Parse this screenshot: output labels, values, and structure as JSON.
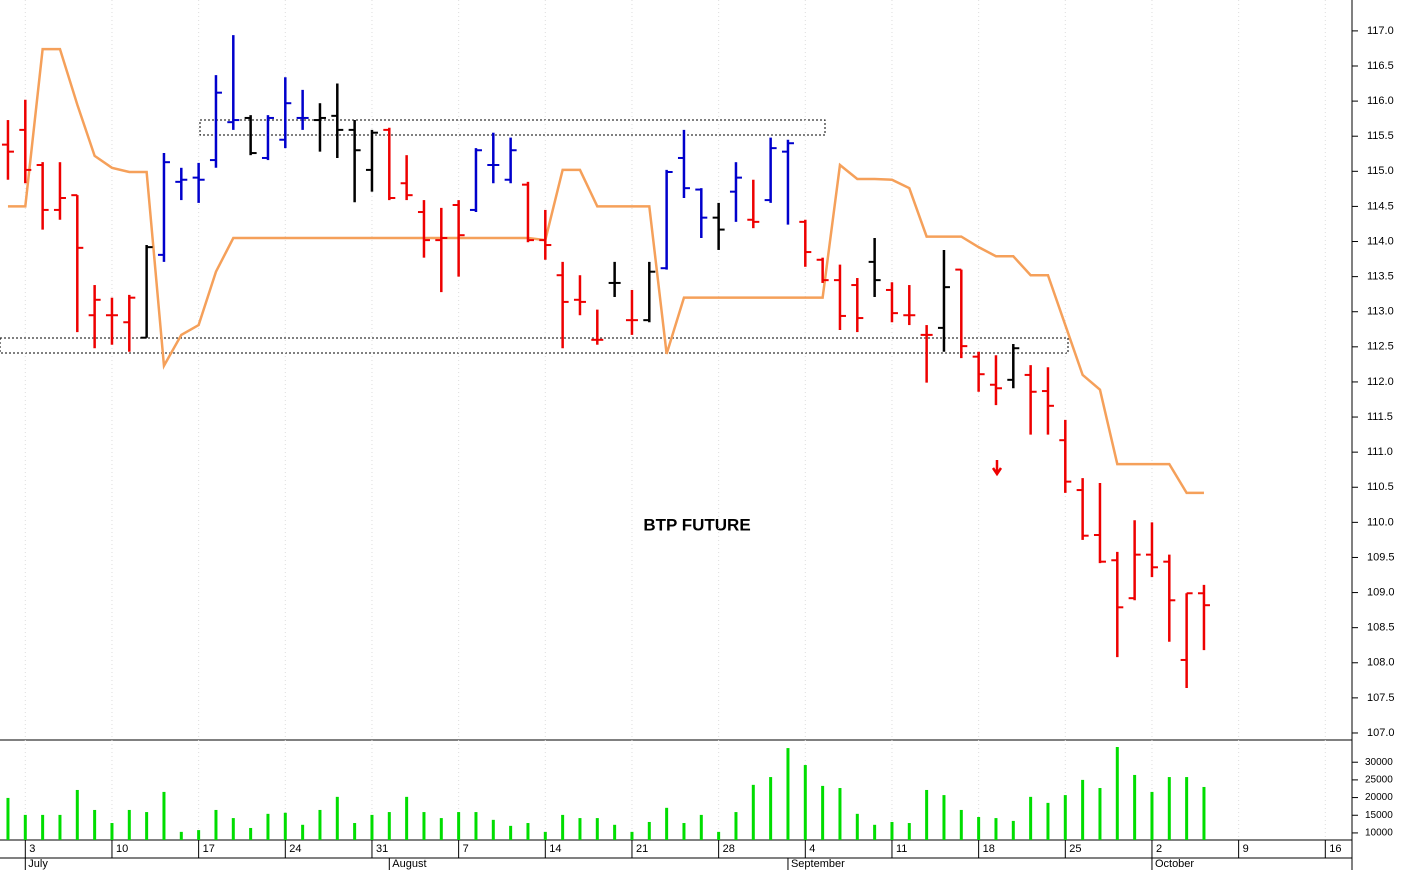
{
  "chart_data": {
    "type": "ohlc",
    "title": "BTP FUTURE",
    "categories": [
      null,
      "3",
      null,
      null,
      null,
      null,
      "10",
      null,
      null,
      null,
      null,
      "17",
      null,
      null,
      null,
      null,
      "24",
      null,
      null,
      null,
      null,
      "31",
      null,
      null,
      null,
      null,
      "7",
      null,
      null,
      null,
      null,
      "14",
      null,
      null,
      null,
      null,
      "21",
      null,
      null,
      null,
      null,
      "28",
      null,
      null,
      null,
      null,
      "4",
      null,
      null,
      null,
      null,
      "11",
      null,
      null,
      null,
      null,
      "18",
      null,
      null,
      null,
      null,
      "25",
      null,
      null,
      null,
      null,
      "2",
      null,
      null,
      null,
      null,
      "9",
      null,
      null,
      null,
      null,
      "16",
      null
    ],
    "months": [
      null,
      "July",
      null,
      null,
      null,
      null,
      null,
      null,
      null,
      null,
      null,
      null,
      null,
      null,
      null,
      null,
      null,
      null,
      null,
      null,
      null,
      null,
      "August",
      null,
      null,
      null,
      null,
      null,
      null,
      null,
      null,
      null,
      null,
      null,
      null,
      null,
      null,
      null,
      null,
      null,
      null,
      null,
      null,
      null,
      null,
      "September",
      null,
      null,
      null,
      null,
      null,
      null,
      null,
      null,
      null,
      null,
      null,
      null,
      null,
      null,
      null,
      null,
      null,
      null,
      null,
      null,
      "October",
      null,
      null,
      null,
      null,
      null,
      null,
      null,
      null,
      null,
      null,
      null
    ],
    "open": [
      115.38,
      115.59,
      115.09,
      114.45,
      114.66,
      112.95,
      112.95,
      112.85,
      112.63,
      113.81,
      114.85,
      114.91,
      115.16,
      115.7,
      115.76,
      115.19,
      115.45,
      115.76,
      115.73,
      115.79,
      115.59,
      115.02,
      115.59,
      114.83,
      114.42,
      114.02,
      114.52,
      114.45,
      115.09,
      114.88,
      114.81,
      114.02,
      113.52,
      113.17,
      112.6,
      113.41,
      112.88,
      112.88,
      113.62,
      115.19,
      114.74,
      114.34,
      114.71,
      114.31,
      114.59,
      115.28,
      114.28,
      113.74,
      113.45,
      113.38,
      113.71,
      113.31,
      112.95,
      112.67,
      112.77,
      113.6,
      112.36,
      111.96,
      112.03,
      112.1,
      111.87,
      111.17,
      110.46,
      109.82,
      109.46,
      108.92,
      109.54,
      109.44,
      108.04,
      108.99,
      null,
      null,
      null,
      null,
      null,
      null,
      null,
      null
    ],
    "high": [
      115.73,
      116.02,
      115.13,
      115.13,
      114.66,
      113.38,
      113.2,
      113.24,
      113.95,
      115.26,
      115.05,
      115.12,
      116.37,
      116.94,
      115.8,
      115.8,
      116.34,
      116.16,
      115.97,
      116.25,
      115.73,
      115.59,
      115.62,
      115.23,
      114.59,
      114.48,
      114.59,
      115.33,
      115.55,
      115.48,
      114.85,
      114.45,
      113.71,
      113.52,
      113.03,
      113.71,
      113.31,
      113.71,
      115.02,
      115.59,
      114.76,
      114.55,
      115.13,
      114.88,
      115.48,
      115.45,
      114.31,
      113.77,
      113.67,
      113.48,
      114.05,
      113.42,
      113.38,
      112.81,
      113.88,
      113.6,
      112.43,
      112.38,
      112.54,
      112.24,
      112.21,
      111.46,
      110.63,
      110.56,
      109.58,
      110.03,
      110.0,
      109.54,
      108.99,
      109.11,
      null,
      null,
      null,
      null,
      null,
      null,
      null,
      null
    ],
    "low": [
      114.88,
      114.83,
      114.17,
      114.31,
      112.71,
      112.48,
      112.53,
      112.43,
      112.63,
      113.71,
      114.59,
      114.55,
      115.05,
      115.59,
      115.23,
      115.16,
      115.33,
      115.59,
      115.28,
      115.19,
      114.56,
      114.71,
      114.59,
      114.59,
      113.77,
      113.28,
      113.5,
      114.42,
      114.83,
      114.83,
      113.99,
      113.74,
      112.48,
      112.95,
      112.53,
      113.21,
      112.67,
      112.85,
      113.6,
      114.62,
      114.05,
      113.88,
      114.28,
      114.19,
      114.55,
      114.24,
      113.64,
      113.41,
      112.74,
      112.71,
      113.21,
      112.85,
      112.81,
      111.99,
      112.43,
      112.34,
      111.86,
      111.67,
      111.91,
      111.25,
      111.25,
      110.42,
      109.75,
      109.42,
      108.08,
      108.89,
      109.22,
      108.3,
      107.64,
      108.18,
      null,
      null,
      null,
      null,
      null,
      null,
      null,
      null
    ],
    "close": [
      115.28,
      115.02,
      114.45,
      114.62,
      113.91,
      113.17,
      112.95,
      113.2,
      113.92,
      115.13,
      114.88,
      114.88,
      116.12,
      115.73,
      115.26,
      115.76,
      115.97,
      115.76,
      115.76,
      115.59,
      115.3,
      115.55,
      114.62,
      114.66,
      114.02,
      114.05,
      114.09,
      115.3,
      115.09,
      115.3,
      114.02,
      113.95,
      113.14,
      113.14,
      112.6,
      113.41,
      112.88,
      113.57,
      114.99,
      114.76,
      114.34,
      114.17,
      114.91,
      114.28,
      115.33,
      115.4,
      113.85,
      113.45,
      112.94,
      112.91,
      113.45,
      112.98,
      112.95,
      112.67,
      113.35,
      112.51,
      112.11,
      111.91,
      112.48,
      111.86,
      111.66,
      110.58,
      109.81,
      109.44,
      108.79,
      109.54,
      109.36,
      108.89,
      108.99,
      108.82,
      null,
      null,
      null,
      null,
      null,
      null,
      null,
      null
    ],
    "colors": [
      "#ee0000",
      "#ee0000",
      "#ee0000",
      "#ee0000",
      "#ee0000",
      "#ee0000",
      "#ee0000",
      "#ee0000",
      "#000000",
      "#0000cc",
      "#0000cc",
      "#0000cc",
      "#0000cc",
      "#0000cc",
      "#000000",
      "#0000cc",
      "#0000cc",
      "#0000cc",
      "#000000",
      "#000000",
      "#000000",
      "#000000",
      "#ee0000",
      "#ee0000",
      "#ee0000",
      "#ee0000",
      "#ee0000",
      "#0000cc",
      "#0000cc",
      "#0000cc",
      "#ee0000",
      "#ee0000",
      "#ee0000",
      "#ee0000",
      "#ee0000",
      "#000000",
      "#ee0000",
      "#000000",
      "#0000cc",
      "#0000cc",
      "#0000cc",
      "#000000",
      "#0000cc",
      "#ee0000",
      "#0000cc",
      "#0000cc",
      "#ee0000",
      "#ee0000",
      "#ee0000",
      "#ee0000",
      "#000000",
      "#ee0000",
      "#ee0000",
      "#ee0000",
      "#000000",
      "#ee0000",
      "#ee0000",
      "#ee0000",
      "#000000",
      "#ee0000",
      "#ee0000",
      "#ee0000",
      "#ee0000",
      "#ee0000",
      "#ee0000",
      "#ee0000",
      "#ee0000",
      "#ee0000",
      "#ee0000",
      "#ee0000",
      null,
      null,
      null,
      null,
      null,
      null,
      null,
      null
    ],
    "overlay": {
      "color": "#f5a05a",
      "values": [
        114.5,
        114.5,
        116.74,
        116.74,
        115.95,
        115.22,
        115.05,
        114.99,
        114.99,
        112.23,
        112.67,
        112.81,
        113.57,
        114.05,
        114.05,
        114.05,
        114.05,
        114.05,
        114.05,
        114.05,
        114.05,
        114.05,
        114.05,
        114.05,
        114.05,
        114.05,
        114.05,
        114.05,
        114.05,
        114.05,
        114.05,
        114.02,
        115.02,
        115.02,
        114.5,
        114.5,
        114.5,
        114.5,
        112.4,
        113.2,
        113.2,
        113.2,
        113.2,
        113.2,
        113.2,
        113.2,
        113.2,
        113.2,
        115.09,
        114.89,
        114.89,
        114.88,
        114.76,
        114.07,
        114.07,
        114.07,
        113.92,
        113.79,
        113.79,
        113.52,
        113.52,
        112.81,
        112.1,
        111.89,
        110.83,
        110.83,
        110.83,
        110.83,
        110.42,
        110.42,
        null,
        null,
        null,
        null,
        null,
        null,
        null,
        null
      ]
    },
    "volume": {
      "color": "#00dd00",
      "axis": "y2",
      "values": [
        19900,
        15100,
        15100,
        15100,
        22150,
        16500,
        12800,
        16500,
        15900,
        21600,
        10300,
        10800,
        16500,
        14200,
        11400,
        15400,
        15700,
        12300,
        16500,
        20200,
        12800,
        15100,
        15900,
        20200,
        15900,
        14200,
        15900,
        15900,
        13700,
        12000,
        12800,
        10300,
        15100,
        14200,
        14200,
        12300,
        10300,
        13100,
        17100,
        12800,
        15100,
        10300,
        15900,
        23600,
        25800,
        34000,
        29200,
        23300,
        22700,
        15400,
        12300,
        13100,
        12800,
        22150,
        20700,
        16500,
        14500,
        14200,
        13400,
        20200,
        18500,
        20700,
        25000,
        22700,
        34300,
        26400,
        21600,
        25800,
        25800,
        23000,
        null,
        null,
        null,
        null,
        null,
        null,
        null,
        null
      ]
    },
    "ylim": [
      106.9,
      117.44
    ],
    "yticks": [
      {
        "value": 107,
        "label": "107.0"
      },
      107.5,
      {
        "value": 108,
        "label": "108.0"
      },
      108.5,
      {
        "value": 109,
        "label": "109.0"
      },
      109.5,
      {
        "value": 110,
        "label": "110.0"
      },
      110.5,
      {
        "value": 111,
        "label": "111.0"
      },
      111.5,
      {
        "value": 112,
        "label": "112.0"
      },
      112.5,
      {
        "value": 113,
        "label": "113.0"
      },
      113.5,
      {
        "value": 114,
        "label": "114.0"
      },
      114.5,
      {
        "value": 115,
        "label": "115.0"
      },
      115.5,
      {
        "value": 116,
        "label": "116.0"
      },
      116.5,
      {
        "value": 117,
        "label": "117.0"
      }
    ],
    "y2lim": [
      8000,
      36000
    ],
    "y2ticks": [
      10000,
      15000,
      20000,
      25000,
      30000
    ]
  }
}
